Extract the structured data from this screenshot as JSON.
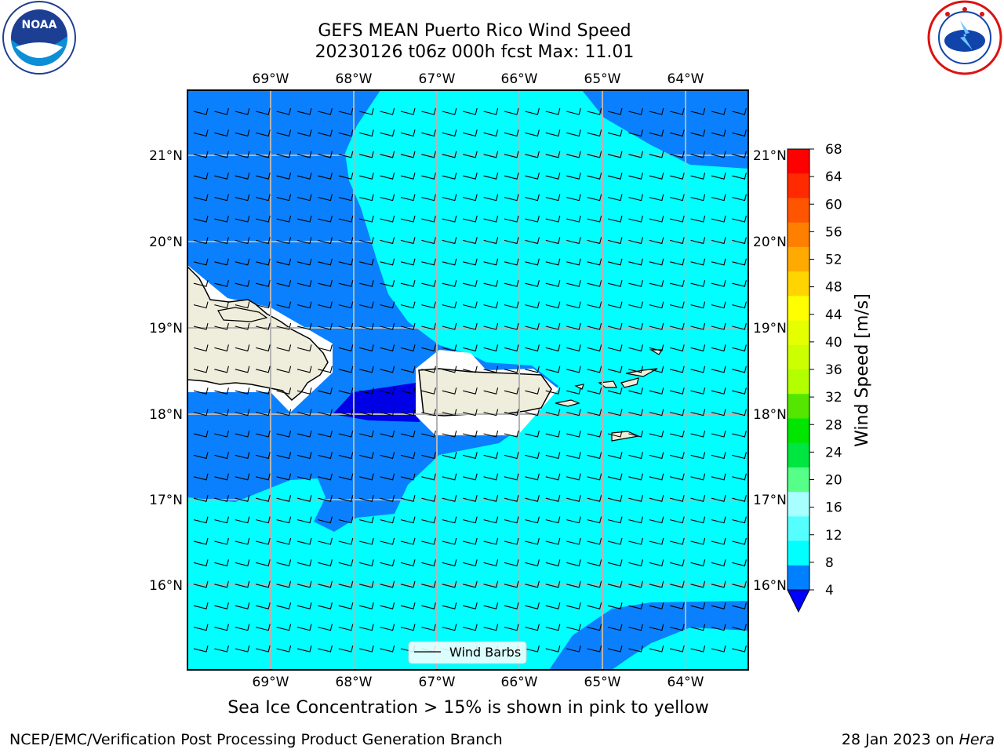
{
  "title_line1": "GEFS MEAN Puerto Rico Wind Speed",
  "title_line2": "20230126 t06z 000h fcst   Max: 11.01",
  "subtitle": "Sea Ice Concentration > 15% is shown in pink to yellow",
  "credit": "NCEP/EMC/Verification Post Processing Product Generation Branch",
  "date_prefix": "28 Jan 2023 on ",
  "date_host": "Hera",
  "logos": {
    "left": "noaa-logo",
    "right": "nws-logo"
  },
  "lon_labels": [
    "69°W",
    "68°W",
    "67°W",
    "66°W",
    "65°W",
    "64°W"
  ],
  "lat_labels": [
    "21°N",
    "20°N",
    "19°N",
    "18°N",
    "17°N",
    "16°N"
  ],
  "legend_label": "Wind Barbs",
  "colorbar": {
    "label": "Wind Speed [m/s]",
    "ticks": [
      "68",
      "64",
      "60",
      "56",
      "52",
      "48",
      "44",
      "40",
      "36",
      "32",
      "28",
      "24",
      "20",
      "16",
      "12",
      "8",
      "4"
    ],
    "colors_top_down": [
      "#ff0000",
      "#ff2a00",
      "#ff5500",
      "#ff8000",
      "#ffaa00",
      "#ffd400",
      "#ffff00",
      "#e6ff00",
      "#ccff00",
      "#b3ff00",
      "#55e600",
      "#00e600",
      "#00e640",
      "#55ff88",
      "#a8ffff",
      "#55ffff",
      "#00ffff",
      "#0080ff"
    ],
    "extend_color": "#0000ff"
  },
  "colors": {
    "band_4_8": "#0a80ff",
    "band_8_12": "#00ffff",
    "below_4": "#0000e6",
    "land": "#efeedc"
  }
}
